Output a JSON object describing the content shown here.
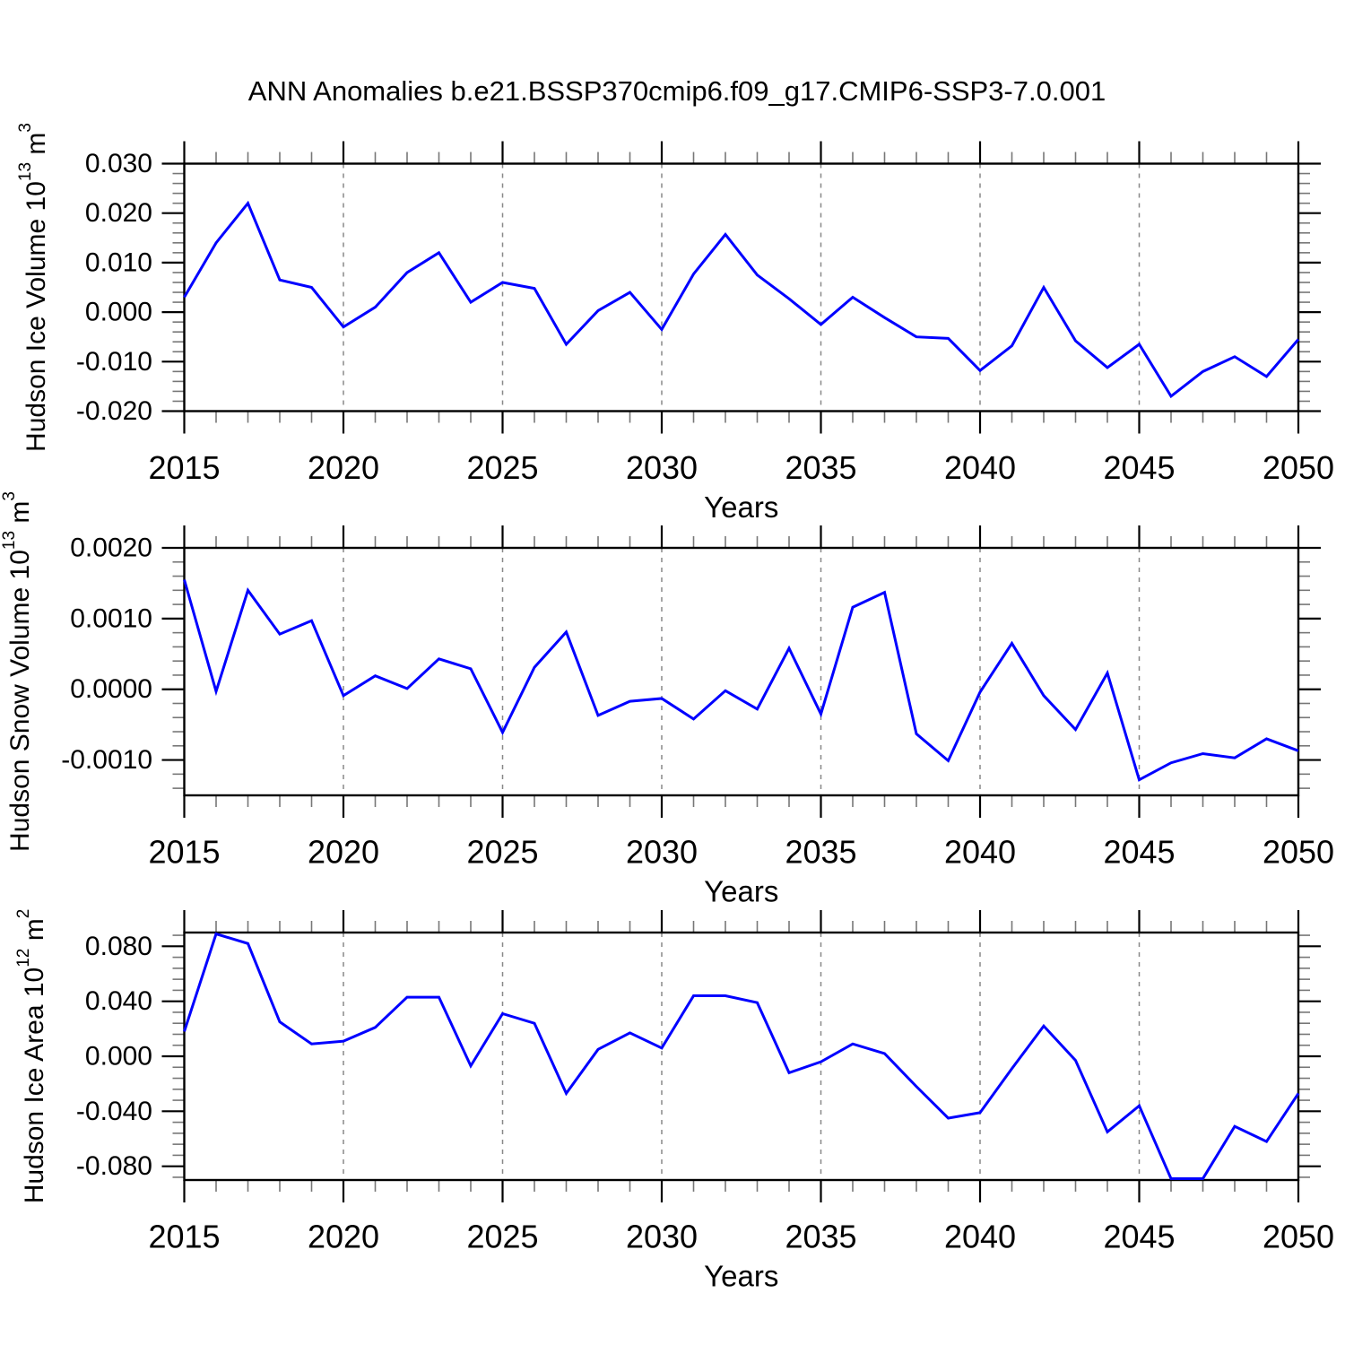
{
  "title": "ANN Anomalies b.e21.BSSP370cmip6.f09_g17.CMIP6-SSP3-7.0.001",
  "colors": {
    "background": "#FFFFFF",
    "axis": "#000000",
    "minor_tick": "#777777",
    "grid": "#888888",
    "series": "#0000FF",
    "text": "#000000"
  },
  "chart_data": {
    "type": "line",
    "xlabel": "Years",
    "x": [
      2015,
      2016,
      2017,
      2018,
      2019,
      2020,
      2021,
      2022,
      2023,
      2024,
      2025,
      2026,
      2027,
      2028,
      2029,
      2030,
      2031,
      2032,
      2033,
      2034,
      2035,
      2036,
      2037,
      2038,
      2039,
      2040,
      2041,
      2042,
      2043,
      2044,
      2045,
      2046,
      2047,
      2048,
      2049,
      2050
    ],
    "xlim": [
      2015,
      2050
    ],
    "x_major_ticks": [
      2015,
      2020,
      2025,
      2030,
      2035,
      2040,
      2045,
      2050
    ],
    "x_major_labels": [
      "2015",
      "2020",
      "2025",
      "2030",
      "2035",
      "2040",
      "2045",
      "2050"
    ],
    "grid_years": [
      2020,
      2025,
      2030,
      2035,
      2040,
      2045
    ],
    "grid_style": "dashed-vertical",
    "legend": "none",
    "series_color": "#0000FF",
    "panels": [
      {
        "name": "Hudson Ice Volume",
        "ylabel": "Hudson Ice Volume 10^13 m^3",
        "ylabel_parts": {
          "base": "Hudson Ice Volume 10",
          "exp": "13",
          "unit": " m",
          "unit_exp": "3"
        },
        "ylim": [
          -0.02,
          0.03
        ],
        "y_major_ticks": [
          0.03,
          0.02,
          0.01,
          0.0,
          -0.01,
          -0.02
        ],
        "y_major_labels": [
          "0.030",
          "0.020",
          "0.010",
          "0.000",
          "-0.010",
          "-0.020"
        ],
        "y_minor_step": 0.002,
        "values": [
          0.003,
          0.014,
          0.022,
          0.0065,
          0.005,
          -0.003,
          0.001,
          0.008,
          0.012,
          0.002,
          0.006,
          0.0048,
          -0.0065,
          0.0003,
          0.004,
          -0.0035,
          0.0077,
          0.0157,
          0.0075,
          0.0027,
          -0.0025,
          0.003,
          -0.0011,
          -0.005,
          -0.0053,
          -0.0118,
          -0.0068,
          0.005,
          -0.0058,
          -0.0112,
          -0.0065,
          -0.017,
          -0.012,
          -0.009,
          -0.013,
          -0.0055
        ]
      },
      {
        "name": "Hudson Snow Volume",
        "ylabel": "Hudson Snow Volume 10^13 m^3",
        "ylabel_parts": {
          "base": "Hudson Snow Volume 10",
          "exp": "13",
          "unit": " m",
          "unit_exp": "3"
        },
        "ylim": [
          -0.0015,
          0.002
        ],
        "y_major_ticks": [
          0.002,
          0.001,
          0.0,
          -0.001
        ],
        "y_major_labels": [
          "0.0020",
          "0.0010",
          "0.0000",
          "-0.0010"
        ],
        "y_minor_step": 0.0002,
        "values": [
          0.00155,
          -3e-05,
          0.0014,
          0.00078,
          0.00097,
          -9e-05,
          0.00019,
          1e-05,
          0.00043,
          0.00029,
          -0.00061,
          0.00031,
          0.00081,
          -0.00037,
          -0.00017,
          -0.00013,
          -0.00042,
          -2e-05,
          -0.00028,
          0.00058,
          -0.00035,
          0.00116,
          0.00137,
          -0.00063,
          -0.00101,
          -4e-05,
          0.00065,
          -9e-05,
          -0.00057,
          0.00023,
          -0.00128,
          -0.00104,
          -0.00091,
          -0.00097,
          -0.0007,
          -0.00087
        ]
      },
      {
        "name": "Hudson Ice Area",
        "ylabel": "Hudson Ice Area 10^12 m^2",
        "ylabel_parts": {
          "base": "Hudson Ice Area 10",
          "exp": "12",
          "unit": " m",
          "unit_exp": "2"
        },
        "ylim": [
          -0.09,
          0.09
        ],
        "y_major_ticks": [
          0.08,
          0.04,
          0.0,
          -0.04,
          -0.08
        ],
        "y_major_labels": [
          "0.080",
          "0.040",
          "0.000",
          "-0.040",
          "-0.080"
        ],
        "y_minor_step": 0.008,
        "values": [
          0.018,
          0.089,
          0.082,
          0.025,
          0.009,
          0.011,
          0.021,
          0.043,
          0.043,
          -0.007,
          0.031,
          0.024,
          -0.027,
          0.005,
          0.017,
          0.006,
          0.044,
          0.044,
          0.039,
          -0.012,
          -0.004,
          0.009,
          0.002,
          -0.022,
          -0.045,
          -0.041,
          -0.009,
          0.022,
          -0.003,
          -0.055,
          -0.036,
          -0.089,
          -0.089,
          -0.051,
          -0.062,
          -0.027
        ]
      }
    ]
  }
}
